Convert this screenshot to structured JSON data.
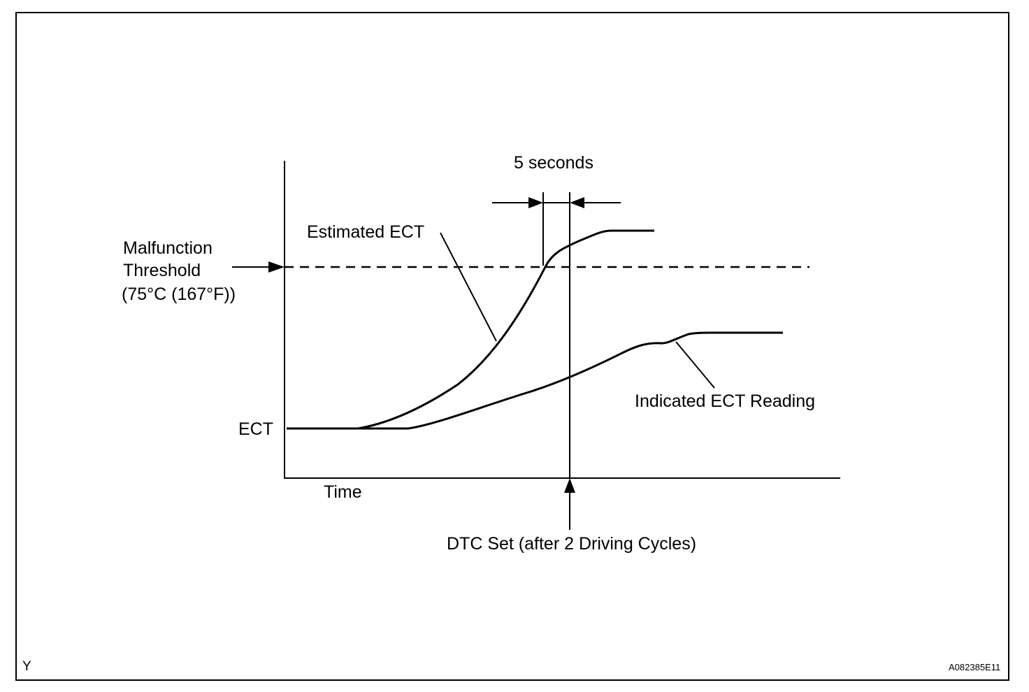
{
  "labels": {
    "interval": "5 seconds",
    "estimated_ect": "Estimated ECT",
    "threshold_line1": "Malfunction",
    "threshold_line2": "Threshold",
    "threshold_line3": "(75°C (167°F))",
    "ect_axis": "ECT",
    "time_axis": "Time",
    "indicated_ect": "Indicated ECT Reading",
    "dtc_set": "DTC Set (after 2 Driving Cycles)",
    "corner_left": "Y",
    "corner_right": "A082385E11"
  },
  "colors": {
    "ink": "#000000",
    "background": "#ffffff"
  }
}
